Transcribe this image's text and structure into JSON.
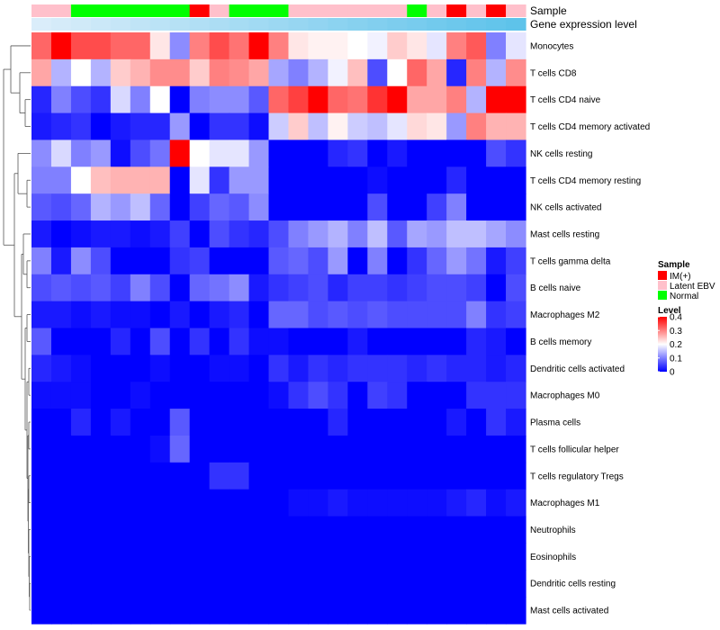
{
  "chart_data": {
    "type": "heatmap",
    "title": "",
    "column_annotations": [
      {
        "name": "Sample",
        "values": [
          "Latent EBV",
          "Latent EBV",
          "Normal",
          "Normal",
          "Normal",
          "Normal",
          "Normal",
          "Normal",
          "IM(+)",
          "Latent EBV",
          "Normal",
          "Normal",
          "Normal",
          "Latent EBV",
          "Latent EBV",
          "Latent EBV",
          "Latent EBV",
          "Latent EBV",
          "Latent EBV",
          "Normal",
          "Latent EBV",
          "IM(+)",
          "Latent EBV",
          "IM(+)",
          "Latent EBV"
        ]
      },
      {
        "name": "Gene expression level",
        "values": [
          0.02,
          0.06,
          0.1,
          0.14,
          0.18,
          0.22,
          0.26,
          0.3,
          0.34,
          0.38,
          0.42,
          0.46,
          0.5,
          0.54,
          0.58,
          0.62,
          0.66,
          0.7,
          0.74,
          0.78,
          0.82,
          0.86,
          0.9,
          0.94,
          0.98
        ]
      }
    ],
    "rows": [
      "Monocytes",
      "T cells CD8",
      "T cells CD4 naive",
      "T cells CD4 memory activated",
      "NK cells resting",
      "T cells CD4 memory resting",
      "NK cells activated",
      "Mast cells resting",
      "T cells gamma delta",
      "B cells naive",
      "Macrophages M2",
      "B cells memory",
      "Dendritic cells activated",
      "Macrophages M0",
      "Plasma cells",
      "T cells follicular helper",
      "T cells regulatory  Tregs",
      "Macrophages M1",
      "Neutrophils",
      "Eosinophils",
      "Dendritic cells resting",
      "Mast cells activated"
    ],
    "values": [
      [
        0.32,
        0.4,
        0.34,
        0.34,
        0.32,
        0.32,
        0.22,
        0.11,
        0.3,
        0.34,
        0.31,
        0.4,
        0.3,
        0.22,
        0.21,
        0.21,
        0.2,
        0.19,
        0.24,
        0.22,
        0.18,
        0.3,
        0.33,
        0.1,
        0.18
      ],
      [
        0.27,
        0.14,
        0.2,
        0.14,
        0.24,
        0.26,
        0.29,
        0.29,
        0.24,
        0.3,
        0.29,
        0.27,
        0.13,
        0.1,
        0.14,
        0.19,
        0.25,
        0.06,
        0.2,
        0.32,
        0.27,
        0.03,
        0.3,
        0.14,
        0.29
      ],
      [
        0.03,
        0.1,
        0.06,
        0.04,
        0.17,
        0.1,
        0.2,
        0.0,
        0.1,
        0.11,
        0.11,
        0.07,
        0.32,
        0.35,
        0.4,
        0.32,
        0.31,
        0.36,
        0.4,
        0.27,
        0.27,
        0.3,
        0.14,
        0.4,
        0.4
      ],
      [
        0.02,
        0.03,
        0.04,
        0.0,
        0.02,
        0.03,
        0.03,
        0.12,
        0.0,
        0.04,
        0.04,
        0.01,
        0.16,
        0.24,
        0.15,
        0.21,
        0.16,
        0.15,
        0.18,
        0.23,
        0.22,
        0.12,
        0.3,
        0.26,
        0.26
      ],
      [
        0.11,
        0.17,
        0.1,
        0.12,
        0.01,
        0.06,
        0.09,
        0.4,
        0.2,
        0.18,
        0.18,
        0.12,
        0.0,
        0.0,
        0.0,
        0.03,
        0.04,
        0.0,
        0.02,
        0.0,
        0.0,
        0.0,
        0.0,
        0.06,
        0.04
      ],
      [
        0.1,
        0.1,
        0.2,
        0.25,
        0.26,
        0.26,
        0.26,
        0.0,
        0.18,
        0.04,
        0.12,
        0.12,
        0.0,
        0.0,
        0.0,
        0.0,
        0.0,
        0.01,
        0.0,
        0.0,
        0.0,
        0.03,
        0.0,
        0.0,
        0.0
      ],
      [
        0.07,
        0.06,
        0.08,
        0.14,
        0.12,
        0.15,
        0.08,
        0.0,
        0.05,
        0.08,
        0.07,
        0.11,
        0.0,
        0.0,
        0.0,
        0.0,
        0.0,
        0.06,
        0.0,
        0.0,
        0.05,
        0.1,
        0.0,
        0.0,
        0.0
      ],
      [
        0.02,
        0.0,
        0.01,
        0.02,
        0.02,
        0.01,
        0.02,
        0.05,
        0.0,
        0.06,
        0.04,
        0.03,
        0.06,
        0.1,
        0.12,
        0.14,
        0.1,
        0.15,
        0.07,
        0.13,
        0.12,
        0.15,
        0.15,
        0.13,
        0.11
      ],
      [
        0.1,
        0.02,
        0.11,
        0.06,
        0.0,
        0.0,
        0.0,
        0.04,
        0.05,
        0.0,
        0.0,
        0.0,
        0.07,
        0.08,
        0.06,
        0.12,
        0.0,
        0.1,
        0.0,
        0.04,
        0.08,
        0.12,
        0.09,
        0.02,
        0.05
      ],
      [
        0.06,
        0.07,
        0.06,
        0.07,
        0.05,
        0.1,
        0.06,
        0.0,
        0.08,
        0.09,
        0.11,
        0.02,
        0.04,
        0.05,
        0.06,
        0.03,
        0.05,
        0.05,
        0.04,
        0.05,
        0.06,
        0.06,
        0.05,
        0.0,
        0.06
      ],
      [
        0.02,
        0.02,
        0.01,
        0.02,
        0.01,
        0.01,
        0.0,
        0.02,
        0.0,
        0.02,
        0.03,
        0.0,
        0.08,
        0.08,
        0.06,
        0.07,
        0.06,
        0.07,
        0.06,
        0.06,
        0.06,
        0.06,
        0.1,
        0.04,
        0.05
      ],
      [
        0.07,
        0.0,
        0.0,
        0.0,
        0.03,
        0.0,
        0.06,
        0.0,
        0.04,
        0.0,
        0.04,
        0.01,
        0.01,
        0.0,
        0.0,
        0.0,
        0.02,
        0.0,
        0.0,
        0.0,
        0.0,
        0.0,
        0.03,
        0.02,
        0.0
      ],
      [
        0.03,
        0.02,
        0.01,
        0.0,
        0.0,
        0.0,
        0.01,
        0.0,
        0.0,
        0.01,
        0.01,
        0.0,
        0.04,
        0.02,
        0.04,
        0.03,
        0.04,
        0.04,
        0.04,
        0.03,
        0.04,
        0.03,
        0.03,
        0.02,
        0.03
      ],
      [
        0.01,
        0.01,
        0.01,
        0.0,
        0.0,
        0.01,
        0.0,
        0.0,
        0.0,
        0.0,
        0.0,
        0.0,
        0.01,
        0.04,
        0.06,
        0.04,
        0.0,
        0.05,
        0.04,
        0.0,
        0.0,
        0.0,
        0.04,
        0.04,
        0.04
      ],
      [
        0.0,
        0.0,
        0.03,
        0.0,
        0.02,
        0.0,
        0.0,
        0.07,
        0.0,
        0.0,
        0.0,
        0.0,
        0.0,
        0.0,
        0.0,
        0.03,
        0.0,
        0.0,
        0.0,
        0.0,
        0.0,
        0.02,
        0.0,
        0.04,
        0.02
      ],
      [
        0.0,
        0.0,
        0.0,
        0.0,
        0.0,
        0.0,
        0.01,
        0.08,
        0.0,
        0.0,
        0.0,
        0.0,
        0.0,
        0.0,
        0.0,
        0.0,
        0.0,
        0.0,
        0.0,
        0.0,
        0.0,
        0.0,
        0.0,
        0.0,
        0.0
      ],
      [
        0.0,
        0.0,
        0.0,
        0.0,
        0.0,
        0.0,
        0.0,
        0.0,
        0.0,
        0.04,
        0.04,
        0.0,
        0.0,
        0.0,
        0.0,
        0.0,
        0.0,
        0.0,
        0.0,
        0.0,
        0.0,
        0.0,
        0.0,
        0.0,
        0.0
      ],
      [
        0.0,
        0.0,
        0.0,
        0.0,
        0.0,
        0.0,
        0.0,
        0.0,
        0.0,
        0.0,
        0.0,
        0.0,
        0.0,
        0.01,
        0.01,
        0.02,
        0.01,
        0.01,
        0.01,
        0.01,
        0.01,
        0.02,
        0.03,
        0.01,
        0.02
      ],
      [
        0.0,
        0.0,
        0.0,
        0.0,
        0.0,
        0.0,
        0.0,
        0.0,
        0.0,
        0.0,
        0.0,
        0.0,
        0.0,
        0.0,
        0.0,
        0.0,
        0.0,
        0.0,
        0.0,
        0.0,
        0.0,
        0.0,
        0.0,
        0.0,
        0.0
      ],
      [
        0.0,
        0.0,
        0.0,
        0.0,
        0.0,
        0.0,
        0.0,
        0.0,
        0.0,
        0.0,
        0.0,
        0.0,
        0.0,
        0.0,
        0.0,
        0.0,
        0.0,
        0.0,
        0.0,
        0.0,
        0.0,
        0.0,
        0.0,
        0.0,
        0.0
      ],
      [
        0.0,
        0.0,
        0.0,
        0.0,
        0.0,
        0.0,
        0.0,
        0.0,
        0.0,
        0.0,
        0.0,
        0.0,
        0.0,
        0.0,
        0.0,
        0.0,
        0.0,
        0.0,
        0.0,
        0.0,
        0.0,
        0.0,
        0.0,
        0.0,
        0.0
      ],
      [
        0.0,
        0.0,
        0.0,
        0.0,
        0.0,
        0.0,
        0.0,
        0.0,
        0.0,
        0.0,
        0.0,
        0.0,
        0.0,
        0.0,
        0.0,
        0.0,
        0.0,
        0.0,
        0.0,
        0.0,
        0.0,
        0.0,
        0.0,
        0.0,
        0.0
      ]
    ],
    "color_scale": {
      "min": 0,
      "mid": 0.2,
      "max": 0.4,
      "low": "#0000ff",
      "mid_color": "#ffffff",
      "high": "#ff0000"
    },
    "legends": [
      {
        "title": "Sample",
        "entries": [
          {
            "label": "IM(+)",
            "color": "#ff0000"
          },
          {
            "label": "Latent EBV",
            "color": "#ffc0cb"
          },
          {
            "label": "Normal",
            "color": "#00ff00"
          }
        ]
      },
      {
        "title": "Level",
        "ticks": [
          0.4,
          0.3,
          0.2,
          0.1,
          0
        ],
        "tick_labels": [
          "0.4",
          "0.3",
          "0.2",
          "0.1",
          "0"
        ]
      }
    ],
    "row_dendrogram": true
  }
}
